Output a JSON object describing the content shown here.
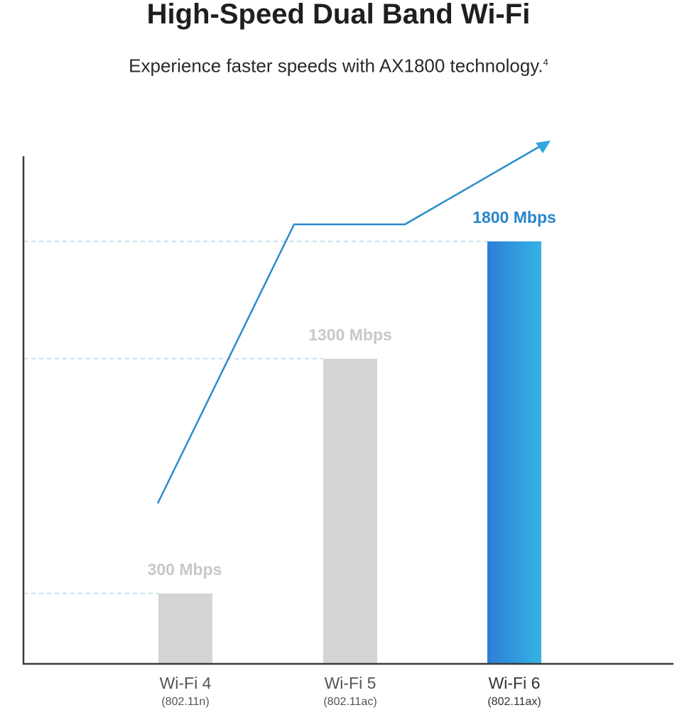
{
  "header": {
    "title": "High-Speed Dual Band Wi-Fi",
    "subtitle": "Experience faster speeds with AX1800 technology.",
    "footnote": "4"
  },
  "colors": {
    "axis": "#3a3a3a",
    "gray_bar": "#d4d4d4",
    "gray_label": "#c8c8c8",
    "blue_bar_start": "#2c7ed6",
    "blue_bar_end": "#36b3e4",
    "blue_label": "#2a86cc",
    "trend_line": "#2b8ccc",
    "arrow_head": "#2fa8dd",
    "grid_dashed": "#b8d6ec",
    "category_text": "#555555",
    "category_text_highlight": "#333333"
  },
  "chart_data": {
    "type": "bar",
    "categories": [
      "Wi-Fi 4",
      "Wi-Fi 5",
      "Wi-Fi 6"
    ],
    "sublabels": [
      "(802.11n)",
      "(802.11ac)",
      "(802.11ax)"
    ],
    "values": [
      300,
      1300,
      1800
    ],
    "value_labels": [
      "300 Mbps",
      "1300 Mbps",
      "1800 Mbps"
    ],
    "highlight_index": 2,
    "ylim": [
      0,
      1800
    ],
    "dashed_reference_lines": [
      300,
      1300,
      1800
    ],
    "trend_arrow": true,
    "title": "High-Speed Dual Band Wi-Fi",
    "xlabel": "",
    "ylabel": ""
  }
}
